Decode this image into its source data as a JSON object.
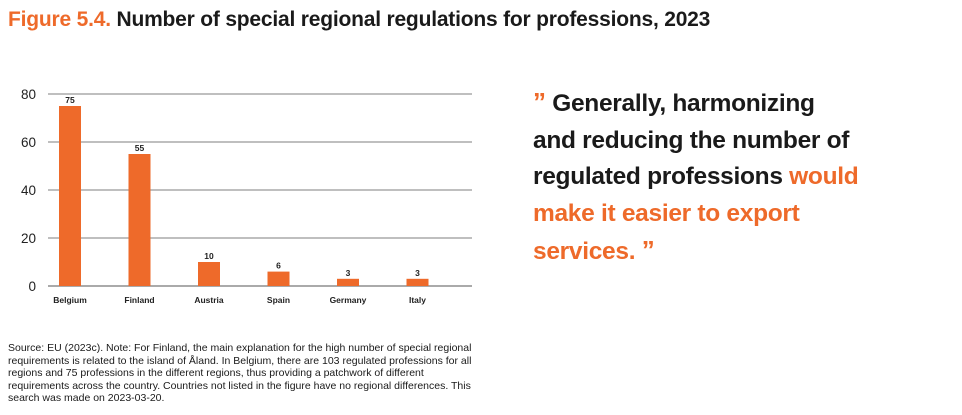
{
  "header": {
    "figure_label": "Figure 5.4.",
    "title": "Number of special regional regulations for professions, 2023"
  },
  "chart_data": {
    "type": "bar",
    "categories": [
      "Belgium",
      "Finland",
      "Austria",
      "Spain",
      "Germany",
      "Italy"
    ],
    "values": [
      75,
      55,
      10,
      6,
      3,
      3
    ],
    "data_labels": [
      "75",
      "55",
      "10",
      "6",
      "3",
      "3"
    ],
    "title": "Number of special regional regulations for professions, 2023",
    "xlabel": "",
    "ylabel": "",
    "ylim": [
      0,
      80
    ],
    "yticks": [
      0,
      20,
      40,
      60,
      80
    ],
    "grid": true,
    "bar_color": "#ee6a2a"
  },
  "quote": {
    "open_mark": "”",
    "text_main": "Generally, harmonizing and reducing the number of regulated professions",
    "text_highlight": "would make it easier to export services.",
    "close_mark": "”"
  },
  "source_note": "Source: EU (2023c). Note: For Finland, the main explanation for the high number of special regional requirements is related to the island of Åland. In Belgium, there are 103 regulated professions for all regions and 75 professions in the different regions, thus providing a patchwork of different requirements across the country. Countries not listed in the figure have no regional differences. This search was made on 2023-03-20.",
  "colors": {
    "accent": "#ee6a2a",
    "text": "#1a1a1a",
    "gridline": "#555555"
  }
}
